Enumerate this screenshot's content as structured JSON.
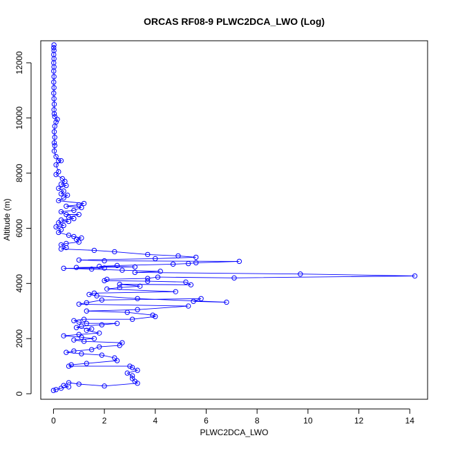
{
  "chart_data": {
    "type": "line",
    "title": "ORCAS RF08-9 PLWC2DCA_LWO (Log)",
    "xlabel": "PLWC2DCA_LWO",
    "ylabel": "Altitude (m)",
    "xlim": [
      -0.5,
      14.7
    ],
    "ylim": [
      -200,
      12800
    ],
    "x_ticks": [
      0,
      2,
      4,
      6,
      8,
      10,
      12,
      14
    ],
    "y_ticks": [
      0,
      2000,
      4000,
      6000,
      8000,
      10000,
      12000
    ],
    "series_color": "#0000ff",
    "marker": "open-circle",
    "grid": false,
    "series": [
      {
        "points": [
          [
            0.02,
            12650
          ],
          [
            0.01,
            12550
          ],
          [
            0.02,
            12450
          ],
          [
            0.01,
            12300
          ],
          [
            0.02,
            12150
          ],
          [
            0.01,
            12000
          ],
          [
            0.02,
            11850
          ],
          [
            0.01,
            11700
          ],
          [
            0.02,
            11500
          ],
          [
            0.01,
            11300
          ],
          [
            0.02,
            11100
          ],
          [
            0.01,
            10900
          ],
          [
            0.02,
            10700
          ],
          [
            0.03,
            10500
          ],
          [
            0.02,
            10300
          ],
          [
            0.03,
            10150
          ],
          [
            0.05,
            10050
          ],
          [
            0.15,
            9950
          ],
          [
            0.1,
            9850
          ],
          [
            0.05,
            9700
          ],
          [
            0.03,
            9500
          ],
          [
            0.05,
            9300
          ],
          [
            0.03,
            9100
          ],
          [
            0.05,
            9000
          ],
          [
            0.03,
            8800
          ],
          [
            0.1,
            8600
          ],
          [
            0.2,
            8450
          ],
          [
            0.3,
            8450
          ],
          [
            0.1,
            8300
          ],
          [
            0.2,
            8050
          ],
          [
            0.1,
            7950
          ],
          [
            0.35,
            7800
          ],
          [
            0.45,
            7700
          ],
          [
            0.3,
            7600
          ],
          [
            0.5,
            7550
          ],
          [
            0.2,
            7450
          ],
          [
            0.4,
            7350
          ],
          [
            0.3,
            7250
          ],
          [
            0.55,
            7200
          ],
          [
            0.4,
            7100
          ],
          [
            0.2,
            7000
          ],
          [
            1.2,
            6900
          ],
          [
            1.0,
            6850
          ],
          [
            0.5,
            6800
          ],
          [
            1.1,
            6750
          ],
          [
            0.8,
            6650
          ],
          [
            0.3,
            6600
          ],
          [
            0.5,
            6500
          ],
          [
            1.0,
            6500
          ],
          [
            0.6,
            6400
          ],
          [
            0.8,
            6350
          ],
          [
            0.3,
            6300
          ],
          [
            0.6,
            6250
          ],
          [
            0.2,
            6200
          ],
          [
            0.4,
            6100
          ],
          [
            0.1,
            6050
          ],
          [
            0.3,
            5950
          ],
          [
            0.2,
            5850
          ],
          [
            0.6,
            5750
          ],
          [
            0.8,
            5700
          ],
          [
            1.1,
            5650
          ],
          [
            0.9,
            5600
          ],
          [
            1.0,
            5500
          ],
          [
            0.5,
            5450
          ],
          [
            0.3,
            5400
          ],
          [
            0.5,
            5300
          ],
          [
            0.3,
            5250
          ],
          [
            1.6,
            5200
          ],
          [
            2.4,
            5150
          ],
          [
            3.7,
            5050
          ],
          [
            4.9,
            5000
          ],
          [
            5.6,
            4950
          ],
          [
            4.0,
            4900
          ],
          [
            1.0,
            4850
          ],
          [
            2.0,
            4820
          ],
          [
            7.3,
            4800
          ],
          [
            5.6,
            4750
          ],
          [
            5.3,
            4720
          ],
          [
            4.7,
            4700
          ],
          [
            2.5,
            4650
          ],
          [
            1.8,
            4620
          ],
          [
            3.2,
            4600
          ],
          [
            0.9,
            4580
          ],
          [
            2.0,
            4560
          ],
          [
            0.4,
            4550
          ],
          [
            1.5,
            4520
          ],
          [
            2.7,
            4480
          ],
          [
            4.2,
            4440
          ],
          [
            3.2,
            4400
          ],
          [
            9.7,
            4340
          ],
          [
            14.2,
            4270
          ],
          [
            7.1,
            4200
          ],
          [
            4.1,
            4230
          ],
          [
            3.7,
            4180
          ],
          [
            2.1,
            4150
          ],
          [
            2.0,
            4100
          ],
          [
            3.7,
            4080
          ],
          [
            5.2,
            4050
          ],
          [
            5.4,
            3950
          ],
          [
            2.6,
            3970
          ],
          [
            3.4,
            3900
          ],
          [
            2.6,
            3850
          ],
          [
            2.1,
            3800
          ],
          [
            4.8,
            3700
          ],
          [
            1.6,
            3650
          ],
          [
            1.4,
            3600
          ],
          [
            1.7,
            3550
          ],
          [
            3.3,
            3450
          ],
          [
            6.8,
            3320
          ],
          [
            5.5,
            3350
          ],
          [
            5.8,
            3450
          ],
          [
            1.9,
            3400
          ],
          [
            1.3,
            3300
          ],
          [
            1.0,
            3250
          ],
          [
            5.3,
            3180
          ],
          [
            3.3,
            3050
          ],
          [
            1.3,
            3000
          ],
          [
            2.9,
            2950
          ],
          [
            3.9,
            2850
          ],
          [
            4.0,
            2800
          ],
          [
            3.1,
            2700
          ],
          [
            1.2,
            2700
          ],
          [
            0.8,
            2650
          ],
          [
            1.0,
            2600
          ],
          [
            1.3,
            2550
          ],
          [
            2.5,
            2550
          ],
          [
            1.9,
            2500
          ],
          [
            1.1,
            2450
          ],
          [
            0.9,
            2400
          ],
          [
            1.5,
            2350
          ],
          [
            1.3,
            2300
          ],
          [
            1.8,
            2200
          ],
          [
            1.0,
            2150
          ],
          [
            0.4,
            2100
          ],
          [
            1.1,
            2050
          ],
          [
            1.6,
            2000
          ],
          [
            0.8,
            1950
          ],
          [
            1.2,
            1900
          ],
          [
            2.7,
            1850
          ],
          [
            2.6,
            1750
          ],
          [
            1.8,
            1700
          ],
          [
            1.5,
            1600
          ],
          [
            0.8,
            1550
          ],
          [
            0.5,
            1500
          ],
          [
            1.1,
            1450
          ],
          [
            1.9,
            1400
          ],
          [
            2.4,
            1300
          ],
          [
            2.5,
            1200
          ],
          [
            1.3,
            1100
          ],
          [
            0.7,
            1050
          ],
          [
            0.6,
            1000
          ],
          [
            3.0,
            1000
          ],
          [
            3.1,
            950
          ],
          [
            3.3,
            850
          ],
          [
            2.9,
            750
          ],
          [
            3.1,
            650
          ],
          [
            3.1,
            550
          ],
          [
            3.2,
            450
          ],
          [
            3.3,
            380
          ],
          [
            2.0,
            280
          ],
          [
            1.0,
            350
          ],
          [
            0.6,
            400
          ],
          [
            0.4,
            300
          ],
          [
            0.6,
            250
          ],
          [
            0.3,
            200
          ],
          [
            0.1,
            150
          ],
          [
            0.0,
            120
          ]
        ]
      }
    ]
  }
}
